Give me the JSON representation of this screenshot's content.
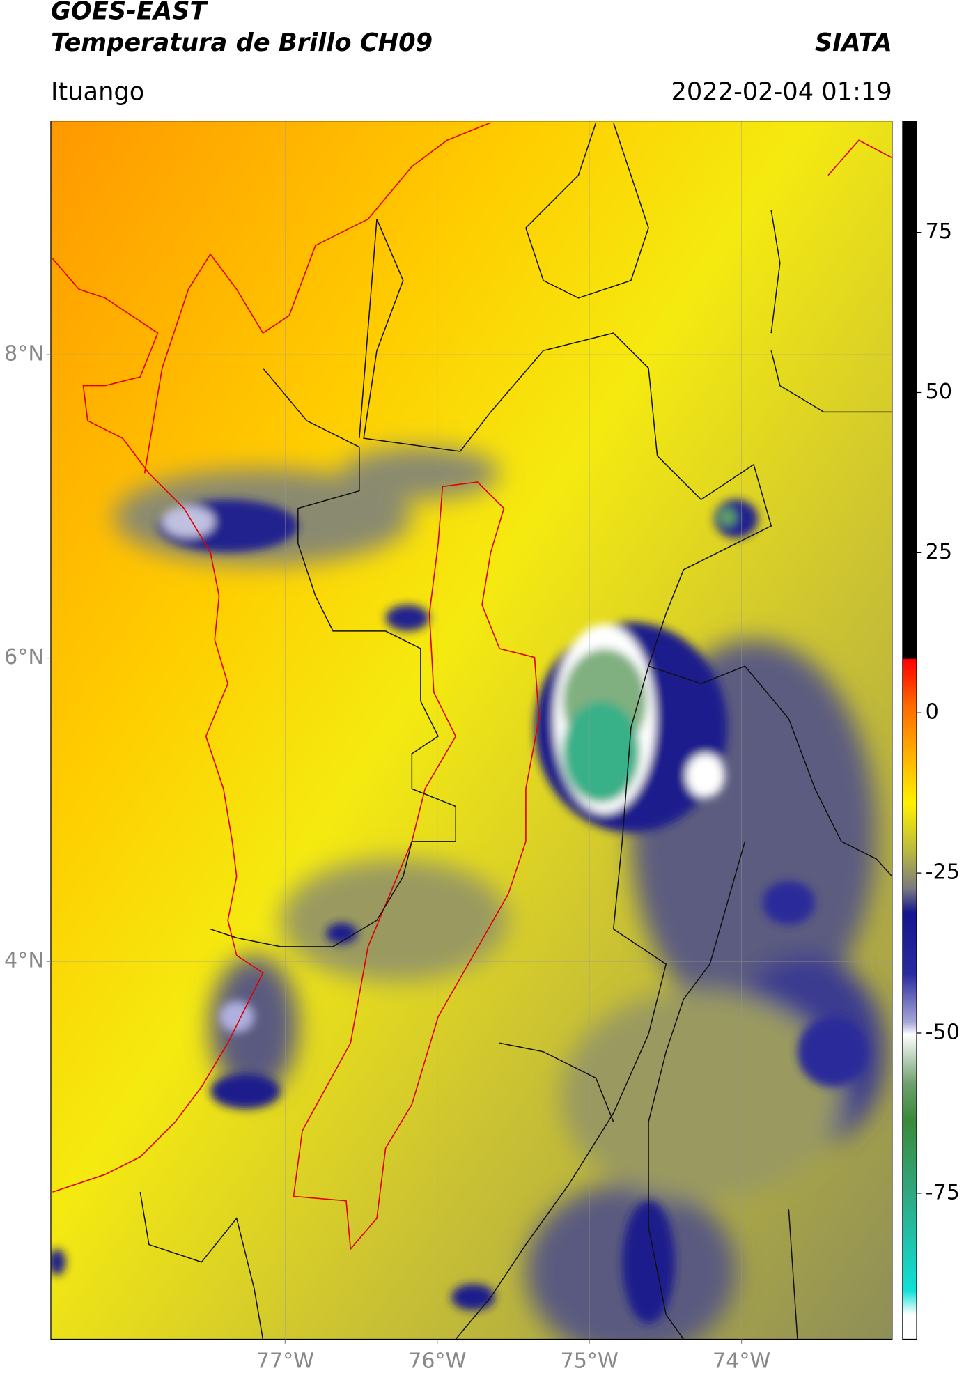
{
  "chart_data": {
    "type": "map",
    "title": "GOES-EAST",
    "subtitle": "Temperatura de Brillo CH09",
    "source": "SIATA",
    "location": "Ituango",
    "timestamp": "2022-02-04 01:19",
    "xlim": [
      -78.54,
      -73.01
    ],
    "ylim": [
      1.51,
      9.54
    ],
    "xticks": [
      {
        "value": -77,
        "label": "77°W"
      },
      {
        "value": -76,
        "label": "76°W"
      },
      {
        "value": -75,
        "label": "75°W"
      },
      {
        "value": -74,
        "label": "74°W"
      }
    ],
    "yticks": [
      {
        "value": 8,
        "label": "8°N"
      },
      {
        "value": 6,
        "label": "6°N"
      },
      {
        "value": 4,
        "label": "4°N"
      }
    ],
    "grid": true,
    "colorbar": {
      "lim": [
        -97.8,
        92.4
      ],
      "ticks": [
        75,
        50,
        25,
        0,
        -25,
        -50,
        -75
      ]
    }
  }
}
